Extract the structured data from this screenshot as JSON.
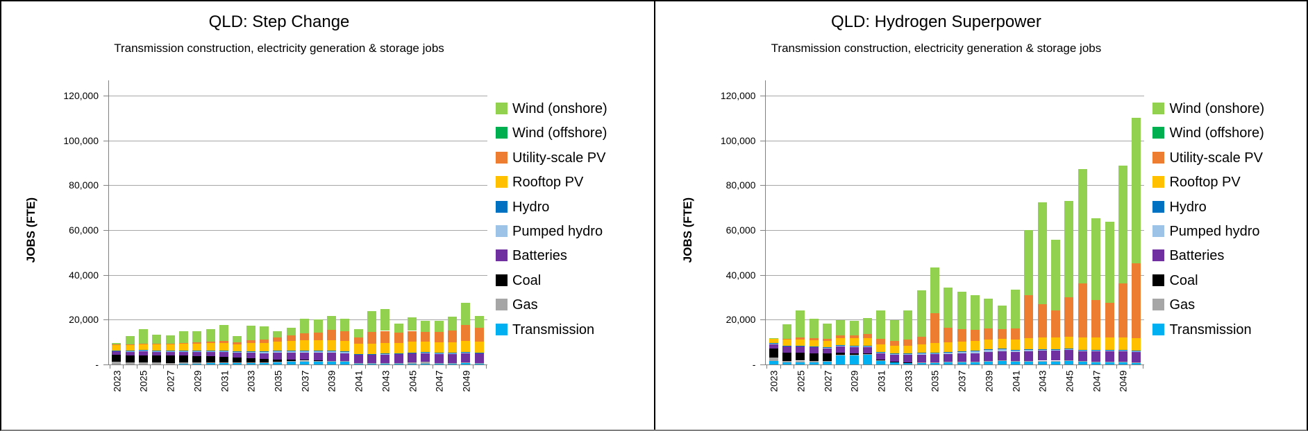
{
  "chart_data": {
    "type": "stacked-bar",
    "figure_description": "Two side-by-side stacked bar charts of QLD energy jobs by technology, 2023-2050",
    "categories": [
      "2023",
      "2024",
      "2025",
      "2026",
      "2027",
      "2028",
      "2029",
      "2030",
      "2031",
      "2032",
      "2033",
      "2034",
      "2035",
      "2036",
      "2037",
      "2038",
      "2039",
      "2040",
      "2041",
      "2042",
      "2043",
      "2044",
      "2045",
      "2046",
      "2047",
      "2048",
      "2049",
      "2050"
    ],
    "x_axis": {
      "labels_shown": [
        "2023",
        "2025",
        "2027",
        "2029",
        "2031",
        "2033",
        "2035",
        "2037",
        "2039",
        "2041",
        "2043",
        "2045",
        "2047",
        "2049"
      ],
      "label_rotation_deg": 90
    },
    "y_axis": {
      "title": "JOBS (FTE)",
      "min": 0,
      "max": 120000,
      "step": 20000,
      "tick_labels": [
        "-",
        "20,000",
        "40,000",
        "60,000",
        "80,000",
        "100,000",
        "120,000"
      ]
    },
    "grid": "horizontal",
    "legend_position": "right",
    "legend": [
      {
        "label": "Wind (onshore)",
        "color": "#92D050"
      },
      {
        "label": "Wind (offshore)",
        "color": "#00B050"
      },
      {
        "label": "Utility-scale PV",
        "color": "#ED7D31"
      },
      {
        "label": "Rooftop PV",
        "color": "#FFC000"
      },
      {
        "label": "Hydro",
        "color": "#0070C0"
      },
      {
        "label": "Pumped hydro",
        "color": "#9DC3E6"
      },
      {
        "label": "Batteries",
        "color": "#7030A0"
      },
      {
        "label": "Coal",
        "color": "#000000"
      },
      {
        "label": "Gas",
        "color": "#A6A6A6"
      },
      {
        "label": "Transmission",
        "color": "#00B0F0"
      }
    ],
    "stack_order_bottom_to_top": [
      "Transmission",
      "Gas",
      "Coal",
      "Batteries",
      "Pumped hydro",
      "Hydro",
      "Rooftop PV",
      "Utility-scale PV",
      "Wind (offshore)",
      "Wind (onshore)"
    ],
    "charts": [
      {
        "title": "QLD: Step Change",
        "subtitle": "Transmission construction, electricity generation & storage jobs",
        "y_axis_title": "JOBS (FTE)",
        "series": {
          "Wind (onshore)": [
            800,
            3900,
            6400,
            4000,
            3800,
            5200,
            5100,
            5800,
            6900,
            3000,
            6400,
            6000,
            2800,
            3500,
            6700,
            6000,
            6400,
            5500,
            3500,
            9500,
            9600,
            4000,
            6000,
            5000,
            5000,
            6000,
            10000,
            5000
          ],
          "Wind (offshore)": [
            0,
            0,
            0,
            0,
            0,
            0,
            0,
            0,
            0,
            0,
            0,
            0,
            0,
            0,
            0,
            0,
            0,
            0,
            0,
            0,
            0,
            0,
            0,
            0,
            0,
            0,
            0,
            0
          ],
          "Utility-scale PV": [
            200,
            200,
            300,
            400,
            300,
            400,
            500,
            600,
            900,
            700,
            1200,
            1400,
            2100,
            2400,
            3100,
            3400,
            4500,
            4200,
            3000,
            5000,
            5500,
            4500,
            4900,
            4300,
            4600,
            5300,
            7100,
            6200
          ],
          "Rooftop PV": [
            2400,
            2600,
            2700,
            2800,
            2900,
            3000,
            3100,
            3200,
            3400,
            3300,
            3600,
            3700,
            4000,
            4200,
            4400,
            4500,
            4600,
            4600,
            4600,
            4700,
            4700,
            4700,
            4800,
            4800,
            4800,
            4800,
            4900,
            4900
          ],
          "Hydro": [
            100,
            100,
            100,
            100,
            100,
            100,
            100,
            100,
            100,
            100,
            100,
            100,
            100,
            100,
            100,
            100,
            100,
            100,
            100,
            100,
            100,
            100,
            100,
            100,
            100,
            100,
            100,
            100
          ],
          "Pumped hydro": [
            400,
            300,
            400,
            400,
            400,
            500,
            500,
            600,
            600,
            500,
            700,
            700,
            800,
            900,
            900,
            900,
            1000,
            900,
            300,
            300,
            300,
            300,
            300,
            300,
            300,
            300,
            400,
            400
          ],
          "Batteries": [
            1600,
            1800,
            1900,
            1800,
            1700,
            1800,
            1900,
            2000,
            2200,
            2100,
            2400,
            2600,
            2900,
            3000,
            3200,
            3300,
            3500,
            3600,
            3700,
            3800,
            3900,
            3900,
            4000,
            4000,
            4100,
            4100,
            4200,
            4200
          ],
          "Coal": [
            3000,
            3000,
            3100,
            3100,
            3200,
            3000,
            2800,
            2700,
            2500,
            2200,
            1800,
            1500,
            1000,
            700,
            400,
            200,
            0,
            0,
            0,
            0,
            0,
            0,
            0,
            0,
            0,
            0,
            0,
            0
          ],
          "Gas": [
            1200,
            900,
            900,
            800,
            700,
            600,
            500,
            400,
            400,
            300,
            300,
            300,
            200,
            200,
            200,
            200,
            200,
            200,
            200,
            200,
            200,
            400,
            600,
            800,
            300,
            300,
            300,
            300
          ],
          "Transmission": [
            0,
            0,
            0,
            0,
            0,
            300,
            400,
            500,
            500,
            600,
            700,
            700,
            1100,
            1400,
            1500,
            1500,
            1500,
            1200,
            300,
            300,
            300,
            300,
            300,
            300,
            400,
            400,
            500,
            400
          ]
        }
      },
      {
        "title": "QLD: Hydrogen Superpower",
        "subtitle": "Transmission construction, electricity generation & storage jobs",
        "y_axis_title": "JOBS (FTE)",
        "series": {
          "Wind (onshore)": [
            300,
            6700,
            12200,
            8600,
            6800,
            6700,
            6300,
            7300,
            12800,
            9300,
            13000,
            20500,
            20200,
            18100,
            16800,
            15300,
            13400,
            10500,
            17300,
            29100,
            45400,
            31700,
            43000,
            51000,
            36500,
            36200,
            52600,
            65000
          ],
          "Wind (offshore)": [
            0,
            0,
            0,
            0,
            0,
            0,
            0,
            0,
            0,
            0,
            0,
            0,
            0,
            0,
            0,
            0,
            0,
            0,
            0,
            0,
            0,
            0,
            0,
            0,
            0,
            0,
            0,
            0
          ],
          "Utility-scale PV": [
            0,
            300,
            800,
            900,
            800,
            1400,
            1500,
            1700,
            2200,
            2000,
            2600,
            3500,
            13500,
            6500,
            5500,
            5000,
            4800,
            4300,
            5000,
            19200,
            15000,
            11800,
            17600,
            24200,
            16700,
            15400,
            24200,
            33300
          ],
          "Rooftop PV": [
            2000,
            2600,
            2700,
            2800,
            2900,
            3100,
            3200,
            3300,
            3400,
            3400,
            3600,
            3800,
            4100,
            4200,
            4300,
            4400,
            4500,
            4500,
            4600,
            5000,
            5200,
            5300,
            5400,
            5500,
            5500,
            5600,
            5600,
            5700
          ],
          "Hydro": [
            100,
            100,
            100,
            100,
            100,
            200,
            200,
            200,
            200,
            200,
            200,
            200,
            200,
            200,
            200,
            200,
            200,
            200,
            200,
            200,
            200,
            200,
            200,
            200,
            200,
            200,
            200,
            200
          ],
          "Pumped hydro": [
            300,
            400,
            400,
            400,
            400,
            500,
            500,
            500,
            500,
            500,
            500,
            600,
            600,
            700,
            800,
            900,
            1000,
            1000,
            800,
            600,
            500,
            500,
            400,
            400,
            400,
            400,
            400,
            400
          ],
          "Batteries": [
            2000,
            2500,
            2600,
            2500,
            2400,
            2600,
            2700,
            2800,
            2900,
            3000,
            3200,
            3400,
            3600,
            3600,
            3700,
            3800,
            3900,
            4000,
            4100,
            4300,
            4400,
            4500,
            4600,
            4600,
            4700,
            4700,
            4800,
            4800
          ],
          "Coal": [
            4100,
            3800,
            3700,
            3500,
            3200,
            900,
            600,
            400,
            300,
            200,
            100,
            0,
            0,
            0,
            0,
            0,
            0,
            0,
            0,
            0,
            0,
            0,
            0,
            0,
            0,
            0,
            0,
            0
          ],
          "Gas": [
            1500,
            700,
            700,
            600,
            500,
            400,
            300,
            300,
            200,
            200,
            200,
            200,
            100,
            100,
            100,
            100,
            200,
            300,
            200,
            200,
            200,
            200,
            200,
            200,
            200,
            200,
            200,
            200
          ],
          "Transmission": [
            1500,
            900,
            1000,
            1000,
            1100,
            4000,
            4100,
            4300,
            1600,
            900,
            700,
            800,
            900,
            1000,
            1100,
            1200,
            1400,
            1500,
            1200,
            1400,
            1500,
            1500,
            1600,
            1200,
            1100,
            1000,
            900,
            600
          ]
        }
      }
    ]
  }
}
